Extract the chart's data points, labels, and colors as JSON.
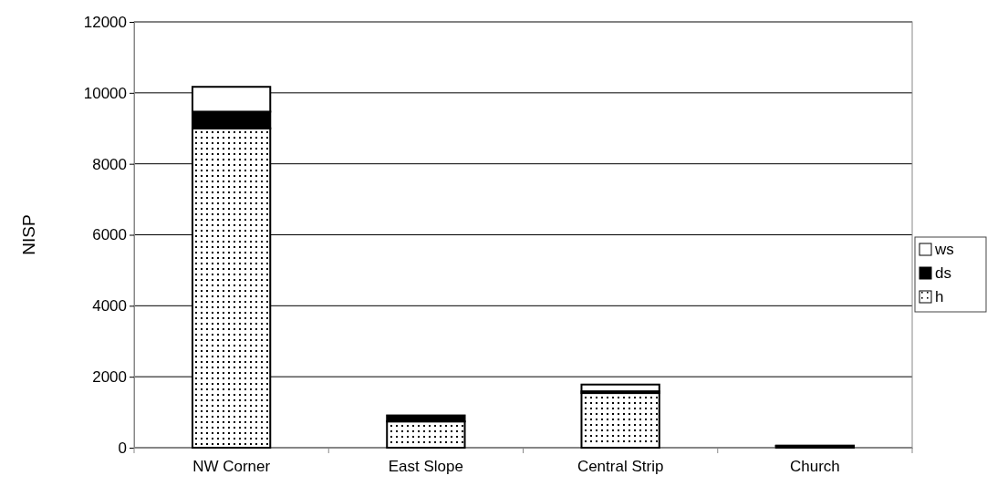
{
  "chart_data": {
    "type": "bar",
    "ylabel": "NISP",
    "categories": [
      "NW Corner",
      "East Slope",
      "Central Strip",
      "Church"
    ],
    "stacked": true,
    "series": [
      {
        "name": "h",
        "color": "#ffffff",
        "values": [
          9000,
          740,
          1540,
          50
        ]
      },
      {
        "name": "ds",
        "color": "#000000",
        "values": [
          470,
          170,
          50,
          10
        ]
      },
      {
        "name": "ws",
        "color": "#ffffff",
        "values": [
          700,
          null,
          190,
          null
        ]
      }
    ],
    "ylim": [
      0,
      12000
    ],
    "yticks": [
      0,
      2000,
      4000,
      6000,
      8000,
      10000,
      12000
    ],
    "grid": "y",
    "legend": "right"
  }
}
